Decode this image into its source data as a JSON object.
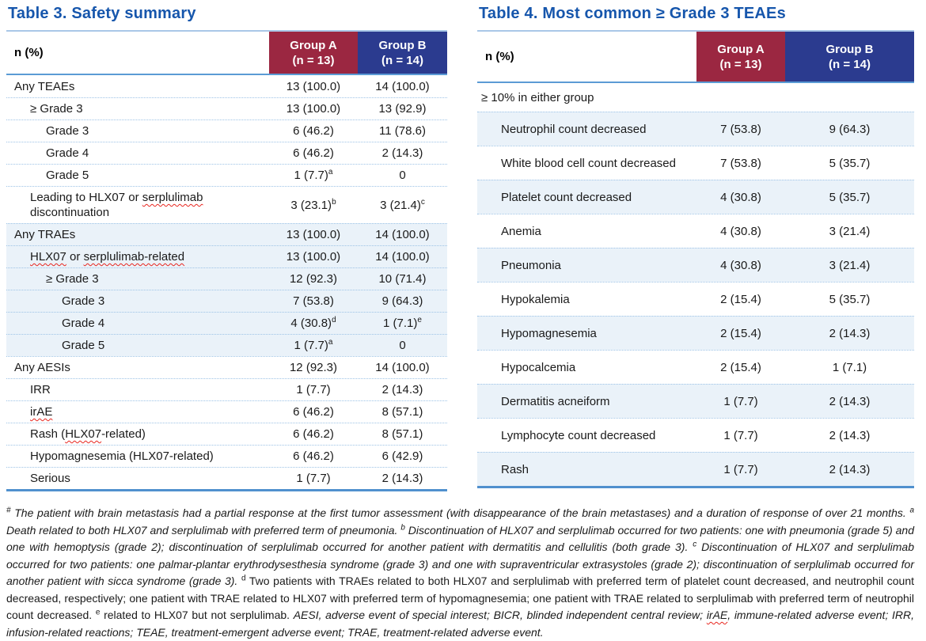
{
  "colors": {
    "title_blue": "#1656AC",
    "group_a_bg": "#9B2741",
    "group_b_bg": "#2B3B8F",
    "header_text": "#FFFFFF",
    "row_shade": "#EAF2F9",
    "table_top_border": "#A9C7E7",
    "header_bottom_border": "#5B9BD5",
    "table_bottom_border": "#5090CE",
    "row_divider": "#9DC3E6",
    "body_text": "#1A1A1A",
    "squiggle_red": "#E8261F"
  },
  "table3": {
    "title": "Table 3. Safety summary",
    "header": {
      "label": "n (%)",
      "group_a": {
        "name": "Group A",
        "n": "(n = 13)"
      },
      "group_b": {
        "name": "Group B",
        "n": "(n = 14)"
      }
    },
    "rows": [
      {
        "indent": 0,
        "shaded": false,
        "label": [
          {
            "t": "Any TEAEs"
          }
        ],
        "a": "13 (100.0)",
        "asup": "",
        "b": "14 (100.0)",
        "bsup": ""
      },
      {
        "indent": 1,
        "shaded": false,
        "label": [
          {
            "t": "≥ Grade 3"
          }
        ],
        "a": "13 (100.0)",
        "asup": "",
        "b": "13 (92.9)",
        "bsup": ""
      },
      {
        "indent": 2,
        "shaded": false,
        "label": [
          {
            "t": "Grade 3"
          }
        ],
        "a": "6 (46.2)",
        "asup": "",
        "b": "11 (78.6)",
        "bsup": ""
      },
      {
        "indent": 2,
        "shaded": false,
        "label": [
          {
            "t": "Grade 4"
          }
        ],
        "a": "6 (46.2)",
        "asup": "",
        "b": "2 (14.3)",
        "bsup": ""
      },
      {
        "indent": 2,
        "shaded": false,
        "label": [
          {
            "t": "Grade 5"
          }
        ],
        "a": "1 (7.7)",
        "asup": "a",
        "b": "0",
        "bsup": ""
      },
      {
        "indent": 1,
        "shaded": false,
        "label": [
          {
            "t": "Leading to HLX07 or "
          },
          {
            "t": "serplulimab",
            "sq": true
          },
          {
            "t": " discontinuation"
          }
        ],
        "a": "3 (23.1)",
        "asup": "b",
        "b": "3 (21.4)",
        "bsup": "c"
      },
      {
        "indent": 0,
        "shaded": true,
        "label": [
          {
            "t": "Any TRAEs"
          }
        ],
        "a": "13 (100.0)",
        "asup": "",
        "b": "14 (100.0)",
        "bsup": ""
      },
      {
        "indent": 1,
        "shaded": true,
        "label": [
          {
            "t": "HLX07",
            "sq": true
          },
          {
            "t": " or "
          },
          {
            "t": "serplulimab-related",
            "sq": true
          }
        ],
        "a": "13 (100.0)",
        "asup": "",
        "b": "14 (100.0)",
        "bsup": ""
      },
      {
        "indent": 2,
        "shaded": true,
        "label": [
          {
            "t": "≥ Grade 3"
          }
        ],
        "a": "12 (92.3)",
        "asup": "",
        "b": "10 (71.4)",
        "bsup": ""
      },
      {
        "indent": 3,
        "shaded": true,
        "label": [
          {
            "t": "Grade 3"
          }
        ],
        "a": "7 (53.8)",
        "asup": "",
        "b": "9 (64.3)",
        "bsup": ""
      },
      {
        "indent": 3,
        "shaded": true,
        "label": [
          {
            "t": "Grade 4"
          }
        ],
        "a": "4 (30.8)",
        "asup": "d",
        "b": "1 (7.1)",
        "bsup": "e"
      },
      {
        "indent": 3,
        "shaded": true,
        "label": [
          {
            "t": "Grade 5"
          }
        ],
        "a": "1 (7.7)",
        "asup": "a",
        "b": "0",
        "bsup": ""
      },
      {
        "indent": 0,
        "shaded": false,
        "label": [
          {
            "t": "Any AESIs"
          }
        ],
        "a": "12 (92.3)",
        "asup": "",
        "b": "14 (100.0)",
        "bsup": ""
      },
      {
        "indent": 1,
        "shaded": false,
        "label": [
          {
            "t": "IRR"
          }
        ],
        "a": "1 (7.7)",
        "asup": "",
        "b": "2 (14.3)",
        "bsup": ""
      },
      {
        "indent": 1,
        "shaded": false,
        "label": [
          {
            "t": "irAE",
            "sq": true
          }
        ],
        "a": "6 (46.2)",
        "asup": "",
        "b": "8 (57.1)",
        "bsup": ""
      },
      {
        "indent": 1,
        "shaded": false,
        "label": [
          {
            "t": "Rash ("
          },
          {
            "t": "HLX07",
            "sq": true
          },
          {
            "t": "-related)"
          }
        ],
        "a": "6 (46.2)",
        "asup": "",
        "b": "8 (57.1)",
        "bsup": ""
      },
      {
        "indent": 1,
        "shaded": false,
        "label": [
          {
            "t": "Hypomagnesemia (HLX07-related)"
          }
        ],
        "a": "6 (46.2)",
        "asup": "",
        "b": "6 (42.9)",
        "bsup": ""
      },
      {
        "indent": 1,
        "shaded": false,
        "label": [
          {
            "t": "Serious"
          }
        ],
        "a": "1 (7.7)",
        "asup": "",
        "b": "2 (14.3)",
        "bsup": ""
      }
    ]
  },
  "table4": {
    "title": "Table 4. Most common ≥ Grade 3 TEAEs",
    "header": {
      "label": "n (%)",
      "group_a": {
        "name": "Group A",
        "n": "(n = 13)"
      },
      "group_b": {
        "name": "Group B",
        "n": "(n = 14)"
      }
    },
    "span_row": "≥ 10% in either group",
    "rows": [
      {
        "indent": 1,
        "shaded": true,
        "label": [
          {
            "t": "Neutrophil count decreased"
          }
        ],
        "a": "7 (53.8)",
        "asup": "",
        "b": "9 (64.3)",
        "bsup": ""
      },
      {
        "indent": 1,
        "shaded": false,
        "label": [
          {
            "t": "White blood cell count decreased"
          }
        ],
        "a": "7 (53.8)",
        "asup": "",
        "b": "5 (35.7)",
        "bsup": ""
      },
      {
        "indent": 1,
        "shaded": true,
        "label": [
          {
            "t": "Platelet count decreased"
          }
        ],
        "a": "4 (30.8)",
        "asup": "",
        "b": "5 (35.7)",
        "bsup": ""
      },
      {
        "indent": 1,
        "shaded": false,
        "label": [
          {
            "t": "Anemia"
          }
        ],
        "a": "4 (30.8)",
        "asup": "",
        "b": "3 (21.4)",
        "bsup": ""
      },
      {
        "indent": 1,
        "shaded": true,
        "label": [
          {
            "t": "Pneumonia"
          }
        ],
        "a": "4 (30.8)",
        "asup": "",
        "b": "3 (21.4)",
        "bsup": ""
      },
      {
        "indent": 1,
        "shaded": false,
        "label": [
          {
            "t": "Hypokalemia"
          }
        ],
        "a": "2 (15.4)",
        "asup": "",
        "b": "5 (35.7)",
        "bsup": ""
      },
      {
        "indent": 1,
        "shaded": true,
        "label": [
          {
            "t": "Hypomagnesemia"
          }
        ],
        "a": "2 (15.4)",
        "asup": "",
        "b": "2 (14.3)",
        "bsup": ""
      },
      {
        "indent": 1,
        "shaded": false,
        "label": [
          {
            "t": "Hypocalcemia"
          }
        ],
        "a": "2 (15.4)",
        "asup": "",
        "b": "1 (7.1)",
        "bsup": ""
      },
      {
        "indent": 1,
        "shaded": true,
        "label": [
          {
            "t": "Dermatitis acneiform"
          }
        ],
        "a": "1 (7.7)",
        "asup": "",
        "b": "2 (14.3)",
        "bsup": ""
      },
      {
        "indent": 1,
        "shaded": false,
        "label": [
          {
            "t": "Lymphocyte count decreased"
          }
        ],
        "a": "1 (7.7)",
        "asup": "",
        "b": "2 (14.3)",
        "bsup": ""
      },
      {
        "indent": 1,
        "shaded": true,
        "label": [
          {
            "t": "Rash"
          }
        ],
        "a": "1 (7.7)",
        "asup": "",
        "b": "2 (14.3)",
        "bsup": ""
      }
    ]
  },
  "footnote": {
    "segments": [
      {
        "t": "#",
        "sup": true,
        "italic": true
      },
      {
        "t": " The patient with brain metastasis had a partial response at the first tumor assessment (with disappearance of the brain metastases) and a duration of response of over 21 months. ",
        "italic": true
      },
      {
        "t": "a",
        "sup": true,
        "italic": true
      },
      {
        "t": " Death related to both HLX07 and serplulimab with preferred term of pneumonia. ",
        "italic": true
      },
      {
        "t": "b",
        "sup": true,
        "italic": true
      },
      {
        "t": " Discontinuation of HLX07 and serplulimab occurred for two patients: one with pneumonia (grade 5) and one with hemoptysis (grade 2); discontinuation of serplulimab occurred for another patient with dermatitis and cellulitis (both grade 3). ",
        "italic": true
      },
      {
        "t": "c",
        "sup": true,
        "italic": true
      },
      {
        "t": " Discontinuation of HLX07 and serplulimab occurred for two patients: one palmar-plantar erythrodysesthesia syndrome (grade 3) and one with supraventricular extrasystoles (grade 2); discontinuation of serplulimab occurred for another patient with sicca syndrome (grade 3). ",
        "italic": true
      },
      {
        "t": "d",
        "sup": true,
        "italic": false
      },
      {
        "t": " Two patients with TRAEs related to both HLX07 and serplulimab with preferred term of platelet count decreased, and neutrophil count decreased, respectively; one patient with TRAE related to HLX07 with preferred term of hypomagnesemia; one patient with TRAE related to serplulimab with preferred term of neutrophil count decreased. ",
        "italic": false
      },
      {
        "t": "e",
        "sup": true,
        "italic": false
      },
      {
        "t": " related to HLX07 but not serplulimab. ",
        "italic": false
      },
      {
        "t": "AESI, adverse event of special interest; BICR, blinded independent central review; ",
        "italic": true
      },
      {
        "t": "irAE",
        "italic": true,
        "sq": true
      },
      {
        "t": ", immune-related adverse event; IRR, infusion-related reactions; TEAE, treatment-emergent adverse event; TRAE, treatment-related adverse event.",
        "italic": true
      }
    ]
  }
}
